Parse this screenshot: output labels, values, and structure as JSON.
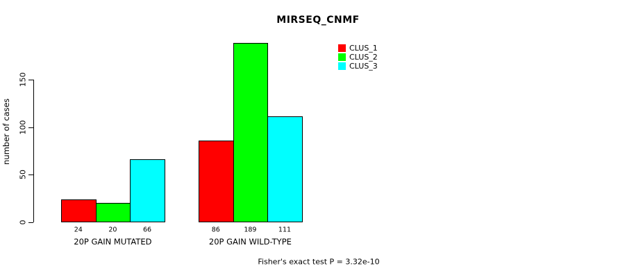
{
  "title": "MIRSEQ_CNMF",
  "ylabel": "number of cases",
  "footer": "Fisher's exact test P = 3.32e-10",
  "legend": {
    "position": "top-right",
    "items": [
      {
        "label": "CLUS_1",
        "color": "#ff0000"
      },
      {
        "label": "CLUS_2",
        "color": "#00ff00"
      },
      {
        "label": "CLUS_3",
        "color": "#00ffff"
      }
    ]
  },
  "chart_data": {
    "type": "bar",
    "title": "MIRSEQ_CNMF",
    "xlabel": "",
    "ylabel": "number of cases",
    "categories": [
      "20P GAIN MUTATED",
      "20P GAIN WILD-TYPE"
    ],
    "series": [
      {
        "name": "CLUS_1",
        "color": "#ff0000",
        "values": [
          24,
          86
        ]
      },
      {
        "name": "CLUS_2",
        "color": "#00ff00",
        "values": [
          20,
          189
        ]
      },
      {
        "name": "CLUS_3",
        "color": "#00ffff",
        "values": [
          66,
          111
        ]
      }
    ],
    "bar_value_labels": [
      [
        24,
        20,
        66
      ],
      [
        86,
        189,
        111
      ]
    ],
    "yticks": [
      0,
      50,
      100,
      150
    ],
    "ylim": [
      0,
      189
    ],
    "grid": false,
    "legend_position": "top-right",
    "annotation": "Fisher's exact test P = 3.32e-10"
  }
}
